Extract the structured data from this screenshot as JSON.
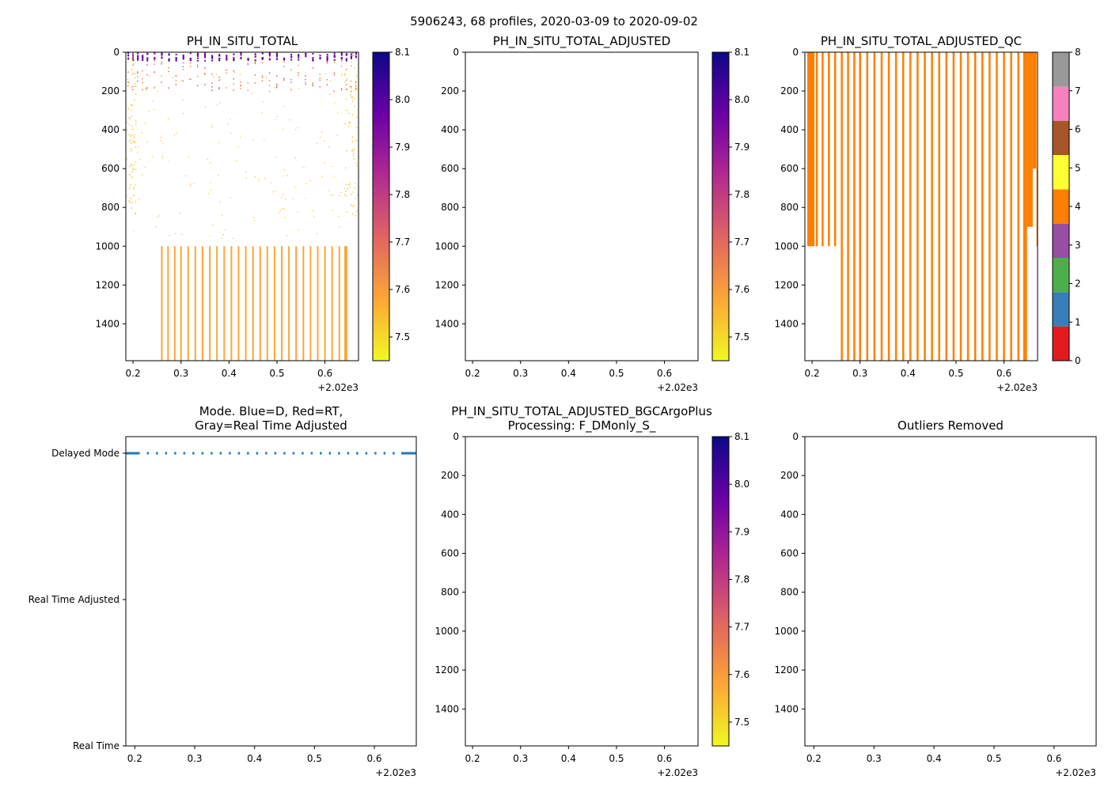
{
  "suptitle": "5906243, 68 profiles, 2020-03-09 to 2020-09-02",
  "offset_label": "+2.02e3",
  "colors": {
    "qc": [
      "#e41a1c",
      "#377eb8",
      "#4daf4a",
      "#984ea3",
      "#ff7f00",
      "#ffff33",
      "#a65628",
      "#f781bf",
      "#999999"
    ],
    "mode_line": "#1f77b4",
    "plasma_stops": [
      "#0d0887",
      "#6a00a8",
      "#b12a90",
      "#e16462",
      "#fca636",
      "#f0f921"
    ]
  },
  "chart_data": [
    {
      "id": "p1",
      "type": "heatmap",
      "title": "PH_IN_SITU_TOTAL",
      "xlim": [
        0.185,
        0.67
      ],
      "ylim": [
        1590,
        0
      ],
      "xticks": [
        "0.2",
        "0.3",
        "0.4",
        "0.5",
        "0.6"
      ],
      "xtick_values": [
        0.2,
        0.3,
        0.4,
        0.5,
        0.6
      ],
      "yticks": [
        "0",
        "200",
        "400",
        "600",
        "800",
        "1000",
        "1200",
        "1400"
      ],
      "ytick_values": [
        0,
        200,
        400,
        600,
        800,
        1000,
        1200,
        1400
      ],
      "colorbar": {
        "min": 7.45,
        "max": 8.1,
        "ticks": [
          "7.5",
          "7.6",
          "7.7",
          "7.8",
          "7.9",
          "8.0",
          "8.1"
        ],
        "tick_values": [
          7.5,
          7.6,
          7.7,
          7.8,
          7.9,
          8.0,
          8.1
        ]
      },
      "deep_profile_times": [
        0.26,
        0.273,
        0.287,
        0.3,
        0.315,
        0.33,
        0.345,
        0.36,
        0.375,
        0.39,
        0.405,
        0.42,
        0.435,
        0.45,
        0.465,
        0.48,
        0.495,
        0.51,
        0.525,
        0.54,
        0.555,
        0.57,
        0.585,
        0.6,
        0.615,
        0.63,
        0.642,
        0.645
      ],
      "surface_profile_times": [
        0.19,
        0.2,
        0.21,
        0.22,
        0.23,
        0.245,
        0.26,
        0.275,
        0.29,
        0.305,
        0.32,
        0.335,
        0.35,
        0.365,
        0.38,
        0.395,
        0.41,
        0.425,
        0.44,
        0.455,
        0.47,
        0.485,
        0.5,
        0.515,
        0.53,
        0.545,
        0.56,
        0.575,
        0.59,
        0.605,
        0.62,
        0.635,
        0.645,
        0.655,
        0.665
      ]
    },
    {
      "id": "p2",
      "type": "heatmap",
      "title": "PH_IN_SITU_TOTAL_ADJUSTED",
      "xlim": [
        0.185,
        0.67
      ],
      "ylim": [
        1590,
        0
      ],
      "xticks": [
        "0.2",
        "0.3",
        "0.4",
        "0.5",
        "0.6"
      ],
      "xtick_values": [
        0.2,
        0.3,
        0.4,
        0.5,
        0.6
      ],
      "yticks": [
        "0",
        "200",
        "400",
        "600",
        "800",
        "1000",
        "1200",
        "1400"
      ],
      "ytick_values": [
        0,
        200,
        400,
        600,
        800,
        1000,
        1200,
        1400
      ],
      "colorbar": {
        "min": 7.45,
        "max": 8.1,
        "ticks": [
          "7.5",
          "7.6",
          "7.7",
          "7.8",
          "7.9",
          "8.0",
          "8.1"
        ],
        "tick_values": [
          7.5,
          7.6,
          7.7,
          7.8,
          7.9,
          8.0,
          8.1
        ]
      }
    },
    {
      "id": "p3",
      "type": "heatmap",
      "title": "PH_IN_SITU_TOTAL_ADJUSTED_QC",
      "xlim": [
        0.185,
        0.67
      ],
      "ylim": [
        1590,
        0
      ],
      "xticks": [
        "0.2",
        "0.3",
        "0.4",
        "0.5",
        "0.6"
      ],
      "xtick_values": [
        0.2,
        0.3,
        0.4,
        0.5,
        0.6
      ],
      "yticks": [
        "0",
        "200",
        "400",
        "600",
        "800",
        "1000",
        "1200",
        "1400"
      ],
      "ytick_values": [
        0,
        200,
        400,
        600,
        800,
        1000,
        1200,
        1400
      ],
      "colorbar": {
        "min": 0,
        "max": 8,
        "ticks": [
          "0",
          "1",
          "2",
          "3",
          "4",
          "5",
          "6",
          "7",
          "8"
        ],
        "tick_values": [
          0,
          1,
          2,
          3,
          4,
          5,
          6,
          7,
          8
        ]
      },
      "qc_flag_shown": 4,
      "shallow_profiles": [
        0.21,
        0.222,
        0.235,
        0.248
      ],
      "deep_profiles": [
        0.262,
        0.275,
        0.288,
        0.3,
        0.315,
        0.33,
        0.345,
        0.36,
        0.375,
        0.39,
        0.405,
        0.42,
        0.435,
        0.45,
        0.465,
        0.48,
        0.495,
        0.51,
        0.525,
        0.54,
        0.555,
        0.57,
        0.585,
        0.6,
        0.615,
        0.63
      ]
    },
    {
      "id": "p4",
      "type": "line",
      "title_lines": [
        "Mode. Blue=D, Red=RT,",
        "Gray=Real Time Adjusted"
      ],
      "xlim": [
        0.185,
        0.67
      ],
      "xticks": [
        "0.2",
        "0.3",
        "0.4",
        "0.5",
        "0.6"
      ],
      "xtick_values": [
        0.2,
        0.3,
        0.4,
        0.5,
        0.6
      ],
      "categories": [
        "Delayed Mode",
        "Real Time Adjusted",
        "Real Time"
      ],
      "series": [
        {
          "name": "mode",
          "value": "Delayed Mode",
          "solid_ranges": [
            [
              0.185,
              0.205
            ],
            [
              0.645,
              0.67
            ]
          ],
          "dotted_range": [
            0.205,
            0.645
          ]
        }
      ]
    },
    {
      "id": "p5",
      "type": "heatmap",
      "title_lines": [
        "PH_IN_SITU_TOTAL_ADJUSTED_BGCArgoPlus",
        "Processing: F_DMonly_S_"
      ],
      "xlim": [
        0.185,
        0.67
      ],
      "ylim": [
        1590,
        0
      ],
      "xticks": [
        "0.2",
        "0.3",
        "0.4",
        "0.5",
        "0.6"
      ],
      "xtick_values": [
        0.2,
        0.3,
        0.4,
        0.5,
        0.6
      ],
      "yticks": [
        "0",
        "200",
        "400",
        "600",
        "800",
        "1000",
        "1200",
        "1400"
      ],
      "ytick_values": [
        0,
        200,
        400,
        600,
        800,
        1000,
        1200,
        1400
      ],
      "colorbar": {
        "min": 7.45,
        "max": 8.1,
        "ticks": [
          "7.5",
          "7.6",
          "7.7",
          "7.8",
          "7.9",
          "8.0",
          "8.1"
        ],
        "tick_values": [
          7.5,
          7.6,
          7.7,
          7.8,
          7.9,
          8.0,
          8.1
        ]
      }
    },
    {
      "id": "p6",
      "type": "scatter",
      "title": "Outliers Removed",
      "xlim": [
        0.185,
        0.67
      ],
      "ylim": [
        1590,
        0
      ],
      "xticks": [
        "0.2",
        "0.3",
        "0.4",
        "0.5",
        "0.6"
      ],
      "xtick_values": [
        0.2,
        0.3,
        0.4,
        0.5,
        0.6
      ],
      "yticks": [
        "0",
        "200",
        "400",
        "600",
        "800",
        "1000",
        "1200",
        "1400"
      ],
      "ytick_values": [
        0,
        200,
        400,
        600,
        800,
        1000,
        1200,
        1400
      ]
    }
  ]
}
